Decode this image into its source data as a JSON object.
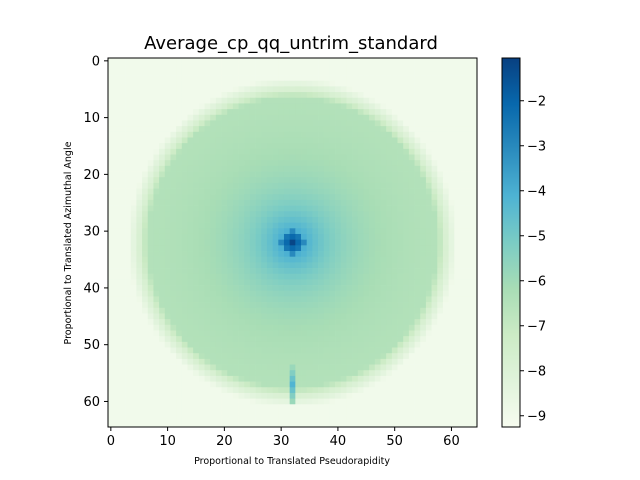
{
  "chart_data": {
    "type": "heatmap",
    "title": "Average_cp_qq_untrim_standard",
    "xlabel": "Proportional to Translated Pseudorapidity",
    "ylabel": "Proportional to Translated Azimuthal Angle",
    "grid_size": [
      65,
      65
    ],
    "xlim": [
      -0.5,
      64.5
    ],
    "ylim": [
      64.5,
      -0.5
    ],
    "xticks": [
      0,
      10,
      20,
      30,
      40,
      50,
      60
    ],
    "yticks": [
      0,
      10,
      20,
      30,
      40,
      50,
      60
    ],
    "colormap": "GnBu",
    "colorbar": {
      "range": [
        -9.25,
        -1.05
      ],
      "ticks": [
        -2,
        -3,
        -4,
        -5,
        -6,
        -7,
        -8,
        -9
      ]
    },
    "features": {
      "center": [
        32,
        32
      ],
      "peak_value": -1.2,
      "disk_radius": 27,
      "background_value": -9.0,
      "secondary_peak": {
        "x": 32,
        "y": 57,
        "value": -4.2
      }
    }
  }
}
